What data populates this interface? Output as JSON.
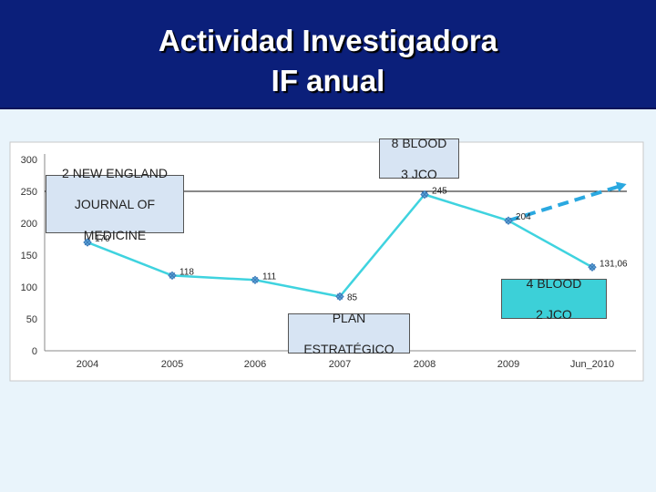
{
  "slide": {
    "title_line1": "Actividad Investigadora",
    "title_line2": "IF anual"
  },
  "chart_data": {
    "type": "line",
    "categories": [
      "2004",
      "2005",
      "2006",
      "2007",
      "2008",
      "2009",
      "Jun_2010"
    ],
    "series": [
      {
        "values": [
          170,
          118,
          111,
          85,
          245,
          204,
          131.06
        ],
        "color": "#3fd3df"
      }
    ],
    "data_labels": [
      "170",
      "118",
      "111",
      "85",
      "245",
      "204",
      "131,06"
    ],
    "projection": {
      "from_category": "2009",
      "from_value": 204,
      "to_value": 258,
      "color": "#2aa8e0",
      "style": "dashed-arrow"
    },
    "ylim": [
      0,
      300
    ],
    "yticks": [
      "0",
      "50",
      "100",
      "150",
      "200",
      "250",
      "300"
    ],
    "grid": false,
    "reference_line_value": 250,
    "legend": "none"
  },
  "callouts": {
    "nejm": {
      "line1": "2 NEW ENGLAND",
      "line2": "JOURNAL OF",
      "line3": "MEDICINE",
      "bg": "#d7e4f3"
    },
    "blood_2008": {
      "line1": "8 BLOOD",
      "line2": "3 JCO",
      "bg": "#d7e4f3"
    },
    "plan": {
      "line1": "PLAN",
      "line2": "ESTRATÉGICO",
      "bg": "#d7e4f3"
    },
    "blood_2010": {
      "line1": "4 BLOOD",
      "line2": "2 JCO",
      "bg": "#3cd0d8"
    }
  }
}
